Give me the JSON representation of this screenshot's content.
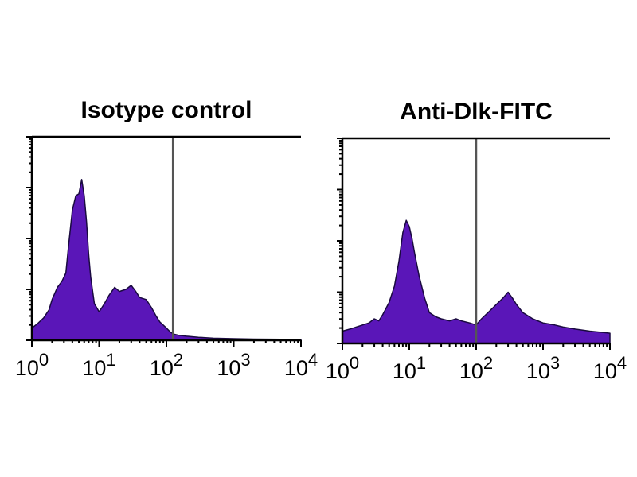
{
  "chart_data": [
    {
      "type": "area",
      "title": "Isotype control",
      "xlabel": "",
      "ylabel": "",
      "x_scale": "log",
      "xlim": [
        1,
        10000
      ],
      "x_tick_labels": [
        {
          "base": "10",
          "exp": "0"
        },
        {
          "base": "10",
          "exp": "1"
        },
        {
          "base": "10",
          "exp": "2"
        },
        {
          "base": "10",
          "exp": "3"
        },
        {
          "base": "10",
          "exp": "4"
        }
      ],
      "ylim": [
        0,
        100
      ],
      "gate_x": 125,
      "fill_color": "#5a16b8",
      "edge_color": "#1a0a40",
      "series": [
        {
          "x": [
            1,
            1.2,
            1.5,
            1.8,
            2.0,
            2.4,
            2.8,
            3.2,
            3.5,
            4.0,
            4.5,
            5.0,
            5.5,
            6.0,
            6.5,
            7.0,
            7.5,
            8.5,
            10,
            12,
            14,
            17,
            20,
            25,
            30,
            35,
            40,
            50,
            60,
            70,
            80,
            100,
            115,
            130,
            150,
            200,
            300,
            500,
            1000,
            2000,
            5000,
            10000
          ],
          "y": [
            6,
            8,
            11,
            15,
            20,
            26,
            29,
            33,
            46,
            64,
            71,
            72,
            79,
            71,
            58,
            42,
            31,
            18,
            14,
            18,
            22,
            26,
            24,
            25,
            27,
            24,
            21,
            20,
            16,
            12,
            9,
            6,
            4,
            3,
            2.5,
            2,
            1.5,
            1,
            0.8,
            0.6,
            0.5,
            0.4
          ]
        }
      ]
    },
    {
      "type": "area",
      "title": "Anti-Dlk-FITC",
      "xlabel": "",
      "ylabel": "",
      "x_scale": "log",
      "xlim": [
        1,
        10000
      ],
      "x_tick_labels": [
        {
          "base": "10",
          "exp": "0"
        },
        {
          "base": "10",
          "exp": "1"
        },
        {
          "base": "10",
          "exp": "2"
        },
        {
          "base": "10",
          "exp": "3"
        },
        {
          "base": "10",
          "exp": "4"
        }
      ],
      "ylim": [
        0,
        100
      ],
      "gate_x": 100,
      "fill_color": "#5a16b8",
      "edge_color": "#1a0a40",
      "series": [
        {
          "x": [
            1,
            1.3,
            1.6,
            2.0,
            2.5,
            3.0,
            3.5,
            4.0,
            5.0,
            6.0,
            7.0,
            8.0,
            9.0,
            10,
            11,
            12,
            14,
            17,
            20,
            25,
            30,
            40,
            50,
            60,
            80,
            100,
            120,
            150,
            200,
            250,
            300,
            350,
            400,
            500,
            700,
            1000,
            1500,
            2000,
            3000,
            5000,
            10000
          ],
          "y": [
            6,
            7,
            8,
            9,
            10,
            12,
            11,
            14,
            20,
            28,
            40,
            54,
            60,
            57,
            51,
            44,
            33,
            22,
            15,
            13,
            12,
            11,
            12,
            11,
            10,
            9,
            12,
            15,
            19,
            22,
            25,
            22,
            19,
            15,
            12,
            10,
            9,
            8,
            7,
            6,
            5
          ]
        }
      ]
    }
  ]
}
